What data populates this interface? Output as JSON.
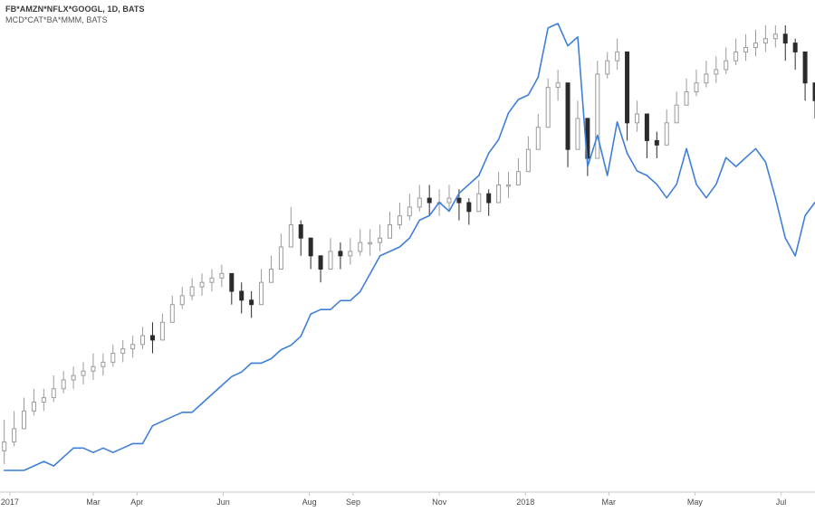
{
  "legend": {
    "primary": "FB*AMZN*NFLX*GOOGL, 1D, BATS",
    "secondary": "MCD*CAT*BA*MMM, BATS"
  },
  "colors": {
    "background": "#ffffff",
    "candle_up": "#9b9b9b",
    "candle_down": "#2b2b2b",
    "line_series": "#3f7fd8",
    "axis": "#c8c8c8",
    "tick_text": "#4a4a4a"
  },
  "chart_data": {
    "type": "line",
    "title": "",
    "xlabel": "",
    "ylabel": "",
    "x_ticks": [
      "2017",
      "Mar",
      "Apr",
      "Jun",
      "Aug",
      "Sep",
      "Nov",
      "2018",
      "Mar",
      "May",
      "Jul"
    ],
    "x_tick_dates": [
      "2017-01-01",
      "2017-03-01",
      "2017-04-01",
      "2017-06-01",
      "2017-08-01",
      "2017-09-01",
      "2017-11-01",
      "2018-01-01",
      "2018-03-01",
      "2018-05-01",
      "2018-07-01"
    ],
    "xlim": [
      "2016-12-25",
      "2018-07-25"
    ],
    "ylim": [
      0,
      100
    ],
    "grid": false,
    "legend_position": "top-left",
    "series": [
      {
        "name": "FB*AMZN*NFLX*GOOGL, 1D, BATS",
        "type": "candlestick",
        "x": [
          "2016-12-28",
          "2017-01-04",
          "2017-01-11",
          "2017-01-18",
          "2017-01-25",
          "2017-02-01",
          "2017-02-08",
          "2017-02-15",
          "2017-02-22",
          "2017-03-01",
          "2017-03-08",
          "2017-03-15",
          "2017-03-22",
          "2017-03-29",
          "2017-04-05",
          "2017-04-12",
          "2017-04-19",
          "2017-04-26",
          "2017-05-03",
          "2017-05-10",
          "2017-05-17",
          "2017-05-24",
          "2017-05-31",
          "2017-06-07",
          "2017-06-14",
          "2017-06-21",
          "2017-06-28",
          "2017-07-05",
          "2017-07-12",
          "2017-07-19",
          "2017-07-26",
          "2017-08-02",
          "2017-08-09",
          "2017-08-16",
          "2017-08-23",
          "2017-08-30",
          "2017-09-06",
          "2017-09-13",
          "2017-09-20",
          "2017-09-27",
          "2017-10-04",
          "2017-10-11",
          "2017-10-18",
          "2017-10-25",
          "2017-11-01",
          "2017-11-08",
          "2017-11-15",
          "2017-11-22",
          "2017-11-29",
          "2017-12-06",
          "2017-12-13",
          "2017-12-20",
          "2017-12-27",
          "2018-01-03",
          "2018-01-10",
          "2018-01-17",
          "2018-01-24",
          "2018-01-31",
          "2018-02-07",
          "2018-02-14",
          "2018-02-21",
          "2018-02-28",
          "2018-03-07",
          "2018-03-14",
          "2018-03-21",
          "2018-03-28",
          "2018-04-04",
          "2018-04-11",
          "2018-04-18",
          "2018-04-25",
          "2018-05-02",
          "2018-05-09",
          "2018-05-16",
          "2018-05-23",
          "2018-05-30",
          "2018-06-06",
          "2018-06-13",
          "2018-06-20",
          "2018-06-27",
          "2018-07-04",
          "2018-07-11",
          "2018-07-18",
          "2018-07-25"
        ],
        "values": [
          6,
          9,
          13,
          15,
          16,
          18,
          20,
          21,
          22,
          23,
          24,
          26,
          27,
          28,
          30,
          29,
          33,
          37,
          39,
          41,
          42,
          43,
          44,
          40,
          38,
          37,
          42,
          45,
          50,
          55,
          52,
          48,
          45,
          49,
          48,
          49,
          51,
          51,
          52,
          55,
          57,
          59,
          61,
          60,
          60,
          61,
          60,
          58,
          62,
          60,
          64,
          64,
          67,
          72,
          77,
          86,
          87,
          72,
          79,
          70,
          89,
          92,
          94,
          78,
          80,
          74,
          73,
          78,
          82,
          85,
          87,
          89,
          90,
          92,
          94,
          95,
          96,
          97,
          98,
          96,
          94,
          87,
          83
        ],
        "high": [
          11,
          13,
          16,
          18,
          18,
          21,
          22,
          23,
          24,
          26,
          26,
          28,
          29,
          30,
          32,
          33,
          35,
          39,
          41,
          43,
          44,
          45,
          46,
          44,
          42,
          40,
          45,
          48,
          53,
          59,
          56,
          52,
          48,
          52,
          51,
          52,
          54,
          54,
          55,
          58,
          60,
          62,
          64,
          64,
          63,
          64,
          63,
          61,
          65,
          63,
          67,
          67,
          70,
          75,
          80,
          88,
          90,
          79,
          83,
          74,
          92,
          94,
          97,
          82,
          83,
          77,
          76,
          81,
          85,
          88,
          90,
          92,
          93,
          95,
          97,
          98,
          99,
          100,
          100,
          100,
          97,
          91,
          86
        ],
        "low": [
          1,
          5,
          9,
          12,
          13,
          15,
          17,
          18,
          19,
          20,
          21,
          23,
          24,
          25,
          27,
          26,
          30,
          34,
          36,
          38,
          39,
          40,
          41,
          37,
          35,
          34,
          38,
          42,
          47,
          51,
          48,
          45,
          42,
          46,
          45,
          46,
          48,
          48,
          49,
          52,
          54,
          56,
          58,
          57,
          57,
          58,
          56,
          55,
          59,
          57,
          61,
          61,
          64,
          69,
          73,
          82,
          83,
          68,
          74,
          66,
          85,
          88,
          90,
          74,
          76,
          70,
          70,
          75,
          79,
          82,
          84,
          86,
          87,
          89,
          91,
          92,
          93,
          94,
          95,
          92,
          90,
          83,
          79
        ]
      },
      {
        "name": "MCD*CAT*BA*MMM, BATS",
        "type": "line",
        "x": [
          "2016-12-28",
          "2017-01-04",
          "2017-01-11",
          "2017-01-18",
          "2017-01-25",
          "2017-02-01",
          "2017-02-08",
          "2017-02-15",
          "2017-02-22",
          "2017-03-01",
          "2017-03-08",
          "2017-03-15",
          "2017-03-22",
          "2017-03-29",
          "2017-04-05",
          "2017-04-12",
          "2017-04-19",
          "2017-04-26",
          "2017-05-03",
          "2017-05-10",
          "2017-05-17",
          "2017-05-24",
          "2017-05-31",
          "2017-06-07",
          "2017-06-14",
          "2017-06-21",
          "2017-06-28",
          "2017-07-05",
          "2017-07-12",
          "2017-07-19",
          "2017-07-26",
          "2017-08-02",
          "2017-08-09",
          "2017-08-16",
          "2017-08-23",
          "2017-08-30",
          "2017-09-06",
          "2017-09-13",
          "2017-09-20",
          "2017-09-27",
          "2017-10-04",
          "2017-10-11",
          "2017-10-18",
          "2017-10-25",
          "2017-11-01",
          "2017-11-08",
          "2017-11-15",
          "2017-11-22",
          "2017-11-29",
          "2017-12-06",
          "2017-12-13",
          "2017-12-20",
          "2017-12-27",
          "2018-01-03",
          "2018-01-10",
          "2018-01-17",
          "2018-01-24",
          "2018-01-31",
          "2018-02-07",
          "2018-02-14",
          "2018-02-21",
          "2018-02-28",
          "2018-03-07",
          "2018-03-14",
          "2018-03-21",
          "2018-03-28",
          "2018-04-04",
          "2018-04-11",
          "2018-04-18",
          "2018-04-25",
          "2018-05-02",
          "2018-05-09",
          "2018-05-16",
          "2018-05-23",
          "2018-05-30",
          "2018-06-06",
          "2018-06-13",
          "2018-06-20",
          "2018-06-27",
          "2018-07-04",
          "2018-07-11",
          "2018-07-18",
          "2018-07-25"
        ],
        "values": [
          0,
          0,
          0,
          1,
          2,
          1,
          3,
          5,
          5,
          4,
          5,
          4,
          5,
          6,
          6,
          10,
          11,
          12,
          13,
          13,
          15,
          17,
          19,
          21,
          22,
          24,
          24,
          25,
          27,
          28,
          30,
          35,
          36,
          36,
          38,
          38,
          40,
          44,
          48,
          49,
          50,
          52,
          56,
          57,
          60,
          58,
          62,
          64,
          66,
          71,
          74,
          80,
          83,
          84,
          88,
          99,
          100,
          95,
          97,
          68,
          75,
          66,
          78,
          71,
          67,
          66,
          64,
          61,
          64,
          72,
          64,
          61,
          64,
          70,
          68,
          70,
          72,
          69,
          61,
          52,
          48,
          57,
          60
        ]
      }
    ]
  }
}
